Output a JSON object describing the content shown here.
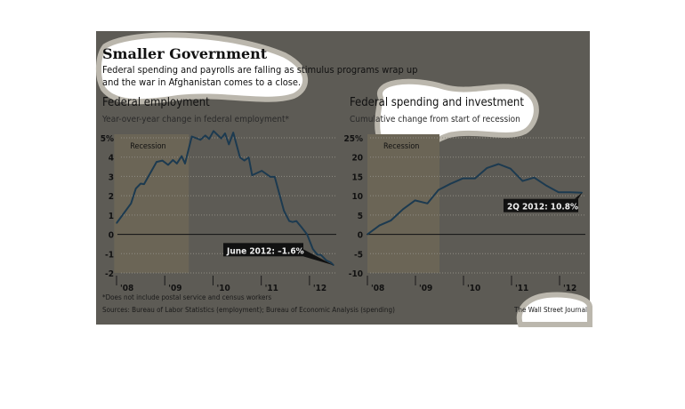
{
  "header": {
    "title": "Smaller Government",
    "subtitle_line1": "Federal spending and payrolls are falling as stimulus programs wrap up",
    "subtitle_line2": "and the war in Afghanistan comes to a close."
  },
  "footer": {
    "footnote": "*Does not include postal service and census workers",
    "sources": "Sources: Bureau of Labor Statistics (employment); Bureau of Economic Analysis (spending)",
    "credit": "The Wall Street Journal"
  },
  "colors": {
    "background": "#5d5b55",
    "line": "#1c3a50",
    "recession": "#6b6556",
    "highlight": "#ffffff",
    "highlight_edge": "#bbb7ad"
  },
  "chart_data": [
    {
      "type": "line",
      "title": "Federal employment",
      "subtitle": "Year-over-year change in federal employment*",
      "recession_label": "Recession",
      "recession": [
        2007.95,
        2009.5
      ],
      "xlim": [
        2008,
        2012.5
      ],
      "ylim": [
        -2,
        5
      ],
      "yticks": [
        5,
        4,
        3,
        2,
        1,
        0,
        -1,
        -2
      ],
      "ytick_labels": [
        "5%",
        "4",
        "3",
        "2",
        "1",
        "0",
        "-1",
        "-2"
      ],
      "xticks": [
        2008,
        2009,
        2010,
        2011,
        2012
      ],
      "xtick_labels": [
        "'08",
        "'09",
        "'10",
        "'11",
        "'12"
      ],
      "grid": true,
      "annotation": "June 2012: –1.6%",
      "x": [
        2008.0,
        2008.3,
        2008.4,
        2008.5,
        2008.57,
        2008.83,
        2008.95,
        2009.07,
        2009.17,
        2009.25,
        2009.35,
        2009.42,
        2009.56,
        2009.74,
        2009.84,
        2009.92,
        2010.01,
        2010.17,
        2010.25,
        2010.33,
        2010.42,
        2010.56,
        2010.65,
        2010.74,
        2010.81,
        2011.01,
        2011.19,
        2011.28,
        2011.47,
        2011.58,
        2011.65,
        2011.73,
        2011.83,
        2011.95,
        2012.07,
        2012.16,
        2012.24,
        2012.35,
        2012.44,
        2012.5
      ],
      "y": [
        0.58,
        1.6,
        2.37,
        2.63,
        2.6,
        3.75,
        3.82,
        3.6,
        3.85,
        3.67,
        4.05,
        3.67,
        5.07,
        4.9,
        5.12,
        4.94,
        5.35,
        4.97,
        5.23,
        4.66,
        5.27,
        3.98,
        3.82,
        3.98,
        3.06,
        3.29,
        2.98,
        2.98,
        1.22,
        0.69,
        0.64,
        0.69,
        0.38,
        0.0,
        -0.76,
        -1.04,
        -1.07,
        -1.35,
        -1.45,
        -1.6
      ]
    },
    {
      "type": "line",
      "title": "Federal spending and investment",
      "subtitle": "Cumulative change from start of recession",
      "recession_label": "Recession",
      "recession": [
        2008.0,
        2009.5
      ],
      "xlim": [
        2008,
        2012.5
      ],
      "ylim": [
        -10,
        25
      ],
      "yticks": [
        25,
        20,
        15,
        10,
        5,
        0,
        -5,
        -10
      ],
      "ytick_labels": [
        "25%",
        "20",
        "15",
        "10",
        "5",
        "0",
        "-5",
        "-10"
      ],
      "xticks": [
        2008,
        2009,
        2010,
        2011,
        2012
      ],
      "xtick_labels": [
        "'08",
        "'09",
        "'10",
        "'11",
        "'12"
      ],
      "grid": true,
      "annotation": "2Q 2012: 10.8%",
      "x": [
        2008.0,
        2008.25,
        2008.49,
        2008.74,
        2008.99,
        2009.25,
        2009.48,
        2009.73,
        2009.99,
        2010.24,
        2010.49,
        2010.73,
        2010.98,
        2011.23,
        2011.47,
        2011.73,
        2011.98,
        2012.22,
        2012.47
      ],
      "y": [
        0,
        2.3,
        3.6,
        6.5,
        8.8,
        8.0,
        11.5,
        13.1,
        14.5,
        14.5,
        17.2,
        18.2,
        17.0,
        13.8,
        14.7,
        12.6,
        10.9,
        10.9,
        10.8
      ]
    }
  ]
}
